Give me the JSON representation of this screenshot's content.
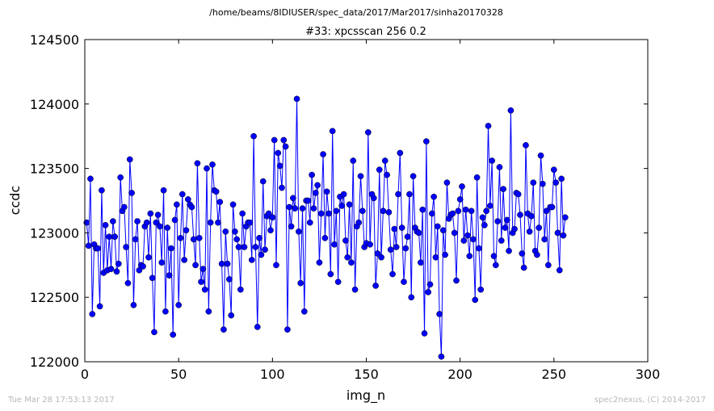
{
  "header": {
    "path": "/home/beams/8IDIUSER/spec_data/2017/Mar2017/sinha20170328",
    "scan_title": "#33: xpcsscan 256 0.2"
  },
  "footer": {
    "timestamp": "Tue Mar 28 17:53:13 2017",
    "credit": "spec2nexus, (C) 2014-2017"
  },
  "chart_data": {
    "type": "line",
    "title": "#33: xpcsscan 256 0.2",
    "xlabel": "img_n",
    "ylabel": "ccdc",
    "xlim": [
      0,
      300
    ],
    "ylim": [
      122000,
      124500
    ],
    "xticks": [
      0,
      50,
      100,
      150,
      200,
      250,
      300
    ],
    "yticks": [
      122000,
      122500,
      123000,
      123500,
      124000,
      124500
    ],
    "xtick_labels": [
      "0",
      "50",
      "100",
      "150",
      "200",
      "250",
      "300"
    ],
    "ytick_labels": [
      "122000",
      "122500",
      "123000",
      "123500",
      "124000",
      "124500"
    ],
    "marker": "circle",
    "color": "#0000ff",
    "grid": false,
    "series": [
      {
        "x_start": 1,
        "x_step": 1,
        "values": [
          123080,
          122900,
          123420,
          122370,
          122910,
          122880,
          122880,
          122430,
          123330,
          122690,
          123060,
          122710,
          122970,
          122720,
          123090,
          122970,
          122700,
          122760,
          123430,
          123170,
          123200,
          122890,
          122610,
          123570,
          123310,
          122440,
          122950,
          123090,
          122710,
          122750,
          122740,
          123050,
          123080,
          122810,
          123150,
          122650,
          122230,
          123080,
          123140,
          123050,
          122770,
          123330,
          122390,
          123040,
          122670,
          122880,
          122210,
          123100,
          123220,
          122440,
          122960,
          123300,
          122790,
          123020,
          123260,
          123220,
          123200,
          122950,
          122750,
          123540,
          122960,
          122620,
          122720,
          122560,
          123500,
          122390,
          123080,
          123530,
          123330,
          123320,
          123080,
          123240,
          122760,
          122250,
          123010,
          122760,
          122640,
          122360,
          123220,
          123010,
          122950,
          122890,
          122560,
          123150,
          122890,
          123050,
          123080,
          123080,
          122790,
          123750,
          122890,
          122270,
          122960,
          122830,
          123400,
          122870,
          123130,
          123150,
          123020,
          123120,
          123720,
          122750,
          123620,
          123520,
          123350,
          123720,
          123670,
          122250,
          123200,
          123050,
          123270,
          123190,
          124040,
          123010,
          122610,
          123190,
          122390,
          123250,
          123250,
          123080,
          123450,
          123190,
          123310,
          123370,
          122770,
          123150,
          123610,
          122960,
          123320,
          123150,
          122680,
          123790,
          122910,
          123170,
          122620,
          123280,
          123210,
          123300,
          122940,
          122810,
          123220,
          122770,
          123560,
          122560,
          123050,
          123080,
          123440,
          123170,
          122890,
          122920,
          123780,
          122910,
          123300,
          123270,
          122590,
          122840,
          123490,
          122810,
          123170,
          123560,
          123450,
          123160,
          122870,
          122680,
          123030,
          122890,
          123300,
          123620,
          123040,
          122620,
          122880,
          122970,
          123300,
          122500,
          123440,
          123040,
          123010,
          123000,
          122770,
          123180,
          122220,
          123710,
          122540,
          122600,
          123150,
          123280,
          122810,
          123050,
          122370,
          122040,
          123020,
          122830,
          123390,
          123110,
          123140,
          123150,
          123000,
          122630,
          123170,
          123260,
          123360,
          122940,
          123180,
          122980,
          122820,
          123170,
          122950,
          122480,
          123430,
          122880,
          122560,
          123120,
          123060,
          123170,
          123830,
          123210,
          123560,
          122820,
          122750,
          123090,
          123510,
          122940,
          123340,
          123040,
          123100,
          122860,
          123950,
          123000,
          123030,
          123310,
          123300,
          123140,
          122840,
          122730,
          123680,
          123150,
          123010,
          123130,
          123390,
          122860,
          122830,
          123040,
          123600,
          123380,
          122950,
          123170,
          122750,
          123200,
          123200,
          123490,
          123390,
          123000,
          122710,
          123420,
          122980,
          123120
        ]
      }
    ]
  }
}
